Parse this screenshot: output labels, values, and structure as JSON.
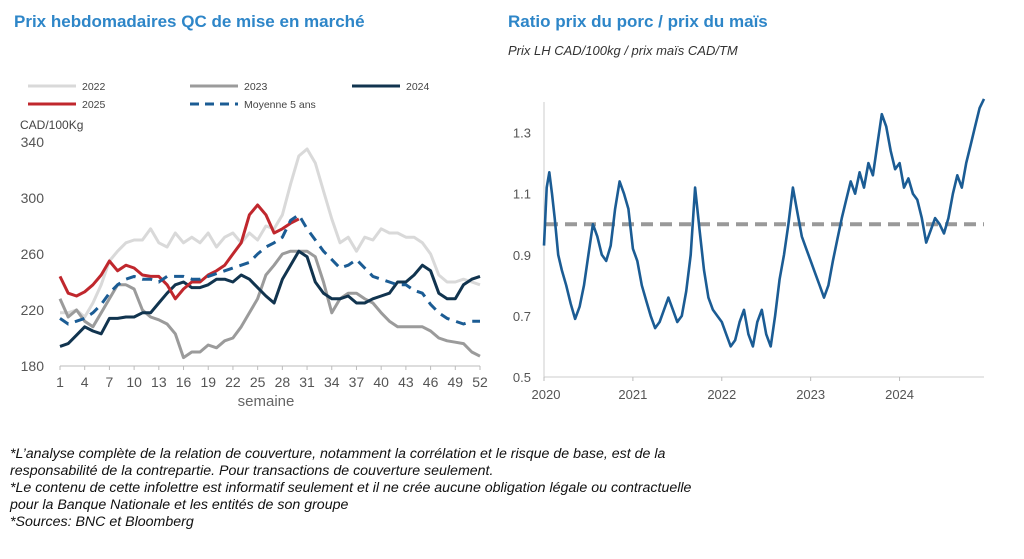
{
  "left_title": "Prix hebdomadaires QC de mise en marché",
  "right_title": "Ratio prix du porc / prix du maïs",
  "right_subtitle": "Prix LH CAD/100kg / prix maïs CAD/TM",
  "footnotes": [
    "*L’analyse complète de la relation de couverture, notamment la corrélation et le risque de base, est de la",
    "responsabilité de la contrepartie. Pour transactions de couverture seulement.",
    "*Le contenu de cette infolettre est informatif seulement et il ne crée aucune obligation légale ou contractuelle",
    "pour la Banque Nationale et les entités de son groupe",
    "*Sources: BNC et Bloomberg"
  ],
  "chart_data": [
    {
      "type": "line",
      "title": "Prix hebdomadaires QC de mise en marché",
      "ylabel": "CAD/100Kg",
      "xlabel": "semaine",
      "ylim": [
        180,
        340
      ],
      "yticks": [
        180,
        220,
        260,
        300,
        340
      ],
      "xlim": [
        1,
        52
      ],
      "xticks": [
        1,
        4,
        7,
        10,
        13,
        16,
        19,
        22,
        25,
        28,
        31,
        34,
        37,
        40,
        43,
        46,
        49,
        52
      ],
      "grid": false,
      "legend_position": "top",
      "series": [
        {
          "name": "2022",
          "color": "#d9d9d9",
          "dash": false,
          "x": [
            1,
            2,
            3,
            4,
            5,
            6,
            7,
            8,
            9,
            10,
            11,
            12,
            13,
            14,
            15,
            16,
            17,
            18,
            19,
            20,
            21,
            22,
            23,
            24,
            25,
            26,
            27,
            28,
            29,
            30,
            31,
            32,
            33,
            34,
            35,
            36,
            37,
            38,
            39,
            40,
            41,
            42,
            43,
            44,
            45,
            46,
            47,
            48,
            49,
            50,
            51,
            52
          ],
          "values": [
            218,
            218,
            220,
            215,
            225,
            238,
            255,
            262,
            268,
            270,
            270,
            278,
            268,
            265,
            275,
            268,
            272,
            268,
            275,
            265,
            272,
            275,
            268,
            275,
            270,
            280,
            278,
            288,
            310,
            330,
            335,
            325,
            305,
            285,
            268,
            272,
            262,
            272,
            270,
            278,
            275,
            275,
            272,
            272,
            268,
            260,
            245,
            240,
            240,
            242,
            240,
            238
          ]
        },
        {
          "name": "2023",
          "color": "#9b9b9b",
          "dash": false,
          "x": [
            1,
            2,
            3,
            4,
            5,
            6,
            7,
            8,
            9,
            10,
            11,
            12,
            13,
            14,
            15,
            16,
            17,
            18,
            19,
            20,
            21,
            22,
            23,
            24,
            25,
            26,
            27,
            28,
            29,
            30,
            31,
            32,
            33,
            34,
            35,
            36,
            37,
            38,
            39,
            40,
            41,
            42,
            43,
            44,
            45,
            46,
            47,
            48,
            49,
            50,
            51,
            52
          ],
          "values": [
            228,
            215,
            220,
            212,
            208,
            218,
            228,
            238,
            238,
            235,
            220,
            215,
            213,
            210,
            203,
            186,
            190,
            190,
            195,
            193,
            198,
            200,
            208,
            218,
            228,
            245,
            252,
            260,
            262,
            262,
            262,
            258,
            240,
            218,
            228,
            232,
            232,
            228,
            225,
            218,
            212,
            208,
            208,
            208,
            208,
            205,
            200,
            198,
            197,
            196,
            190,
            187
          ]
        },
        {
          "name": "2024",
          "color": "#11344f",
          "dash": false,
          "x": [
            1,
            2,
            3,
            4,
            5,
            6,
            7,
            8,
            9,
            10,
            11,
            12,
            13,
            14,
            15,
            16,
            17,
            18,
            19,
            20,
            21,
            22,
            23,
            24,
            25,
            26,
            27,
            28,
            29,
            30,
            31,
            32,
            33,
            34,
            35,
            36,
            37,
            38,
            39,
            40,
            41,
            42,
            43,
            44,
            45,
            46,
            47,
            48,
            49,
            50,
            51,
            52
          ],
          "values": [
            194,
            196,
            202,
            208,
            205,
            203,
            214,
            214,
            215,
            215,
            218,
            218,
            225,
            232,
            238,
            240,
            236,
            236,
            238,
            242,
            242,
            240,
            245,
            242,
            236,
            230,
            225,
            242,
            252,
            262,
            258,
            240,
            232,
            228,
            228,
            230,
            225,
            225,
            228,
            230,
            232,
            240,
            240,
            245,
            252,
            248,
            232,
            228,
            228,
            238,
            242,
            244
          ]
        },
        {
          "name": "2025",
          "color": "#c0272d",
          "dash": false,
          "x": [
            1,
            2,
            3,
            4,
            5,
            6,
            7,
            8,
            9,
            10,
            11,
            12,
            13,
            14,
            15,
            16,
            17,
            18,
            19,
            20,
            21,
            22,
            23,
            24,
            25,
            26,
            27,
            28,
            29,
            30
          ],
          "values": [
            244,
            232,
            230,
            233,
            238,
            245,
            255,
            248,
            252,
            250,
            245,
            244,
            244,
            238,
            228,
            235,
            240,
            240,
            245,
            248,
            252,
            260,
            268,
            288,
            295,
            288,
            275,
            278,
            282,
            285
          ]
        },
        {
          "name": "Moyenne 5 ans",
          "color": "#1b5c94",
          "dash": true,
          "x": [
            1,
            2,
            3,
            4,
            5,
            6,
            7,
            8,
            9,
            10,
            11,
            12,
            13,
            14,
            15,
            16,
            17,
            18,
            19,
            20,
            21,
            22,
            23,
            24,
            25,
            26,
            27,
            28,
            29,
            30,
            31,
            32,
            33,
            34,
            35,
            36,
            37,
            38,
            39,
            40,
            41,
            42,
            43,
            44,
            45,
            46,
            47,
            48,
            49,
            50,
            51,
            52
          ],
          "values": [
            214,
            210,
            212,
            214,
            218,
            224,
            232,
            238,
            242,
            244,
            242,
            242,
            240,
            244,
            244,
            244,
            242,
            242,
            244,
            246,
            248,
            250,
            252,
            254,
            260,
            265,
            268,
            272,
            284,
            288,
            278,
            270,
            262,
            256,
            250,
            252,
            256,
            250,
            244,
            242,
            240,
            238,
            238,
            234,
            232,
            224,
            218,
            214,
            212,
            210,
            212,
            212
          ]
        }
      ]
    },
    {
      "type": "line",
      "title": "Ratio prix du porc / prix du maïs",
      "subtitle": "Prix LH CAD/100kg / prix maïs CAD/TM",
      "ylim": [
        0.5,
        1.4
      ],
      "yticks": [
        "0.5",
        "0.7",
        "0.9",
        "1.1",
        "1.3"
      ],
      "xlim": [
        2020.0,
        2024.95
      ],
      "xticks": [
        "2020",
        "2021",
        "2022",
        "2023",
        "2024"
      ],
      "grid": false,
      "reference_line": {
        "value": 1.0,
        "color": "#999999",
        "dash": true
      },
      "series": [
        {
          "color": "#1b5c94",
          "x": [
            2020.0,
            2020.03,
            2020.06,
            2020.09,
            2020.12,
            2020.16,
            2020.2,
            2020.25,
            2020.3,
            2020.35,
            2020.4,
            2020.45,
            2020.5,
            2020.55,
            2020.6,
            2020.65,
            2020.7,
            2020.75,
            2020.8,
            2020.85,
            2020.9,
            2020.95,
            2021.0,
            2021.05,
            2021.1,
            2021.15,
            2021.2,
            2021.25,
            2021.3,
            2021.35,
            2021.4,
            2021.45,
            2021.5,
            2021.55,
            2021.6,
            2021.65,
            2021.7,
            2021.75,
            2021.8,
            2021.85,
            2021.9,
            2021.95,
            2022.0,
            2022.05,
            2022.1,
            2022.15,
            2022.2,
            2022.25,
            2022.3,
            2022.35,
            2022.4,
            2022.45,
            2022.5,
            2022.55,
            2022.6,
            2022.65,
            2022.7,
            2022.75,
            2022.8,
            2022.85,
            2022.9,
            2022.95,
            2023.0,
            2023.05,
            2023.1,
            2023.15,
            2023.2,
            2023.25,
            2023.3,
            2023.35,
            2023.4,
            2023.45,
            2023.5,
            2023.55,
            2023.6,
            2023.65,
            2023.7,
            2023.75,
            2023.8,
            2023.85,
            2023.9,
            2023.95,
            2024.0,
            2024.05,
            2024.1,
            2024.15,
            2024.2,
            2024.25,
            2024.3,
            2024.35,
            2024.4,
            2024.45,
            2024.5,
            2024.55,
            2024.6,
            2024.65,
            2024.7,
            2024.75,
            2024.8,
            2024.85,
            2024.9,
            2024.95
          ],
          "values": [
            0.93,
            1.12,
            1.17,
            1.1,
            1.02,
            0.9,
            0.85,
            0.8,
            0.74,
            0.69,
            0.73,
            0.8,
            0.9,
            1.0,
            0.96,
            0.9,
            0.88,
            0.93,
            1.05,
            1.14,
            1.1,
            1.05,
            0.92,
            0.88,
            0.8,
            0.75,
            0.7,
            0.66,
            0.68,
            0.72,
            0.76,
            0.72,
            0.68,
            0.7,
            0.78,
            0.9,
            1.12,
            0.98,
            0.85,
            0.76,
            0.72,
            0.7,
            0.68,
            0.64,
            0.6,
            0.62,
            0.68,
            0.72,
            0.64,
            0.6,
            0.68,
            0.72,
            0.64,
            0.6,
            0.7,
            0.82,
            0.9,
            1.0,
            1.12,
            1.04,
            0.96,
            0.92,
            0.88,
            0.84,
            0.8,
            0.76,
            0.8,
            0.88,
            0.95,
            1.02,
            1.08,
            1.14,
            1.1,
            1.17,
            1.12,
            1.2,
            1.16,
            1.26,
            1.36,
            1.32,
            1.24,
            1.18,
            1.2,
            1.12,
            1.15,
            1.1,
            1.08,
            1.02,
            0.94,
            0.98,
            1.02,
            1.0,
            0.97,
            1.02,
            1.1,
            1.16,
            1.12,
            1.2,
            1.26,
            1.32,
            1.38,
            1.41
          ]
        }
      ]
    }
  ]
}
